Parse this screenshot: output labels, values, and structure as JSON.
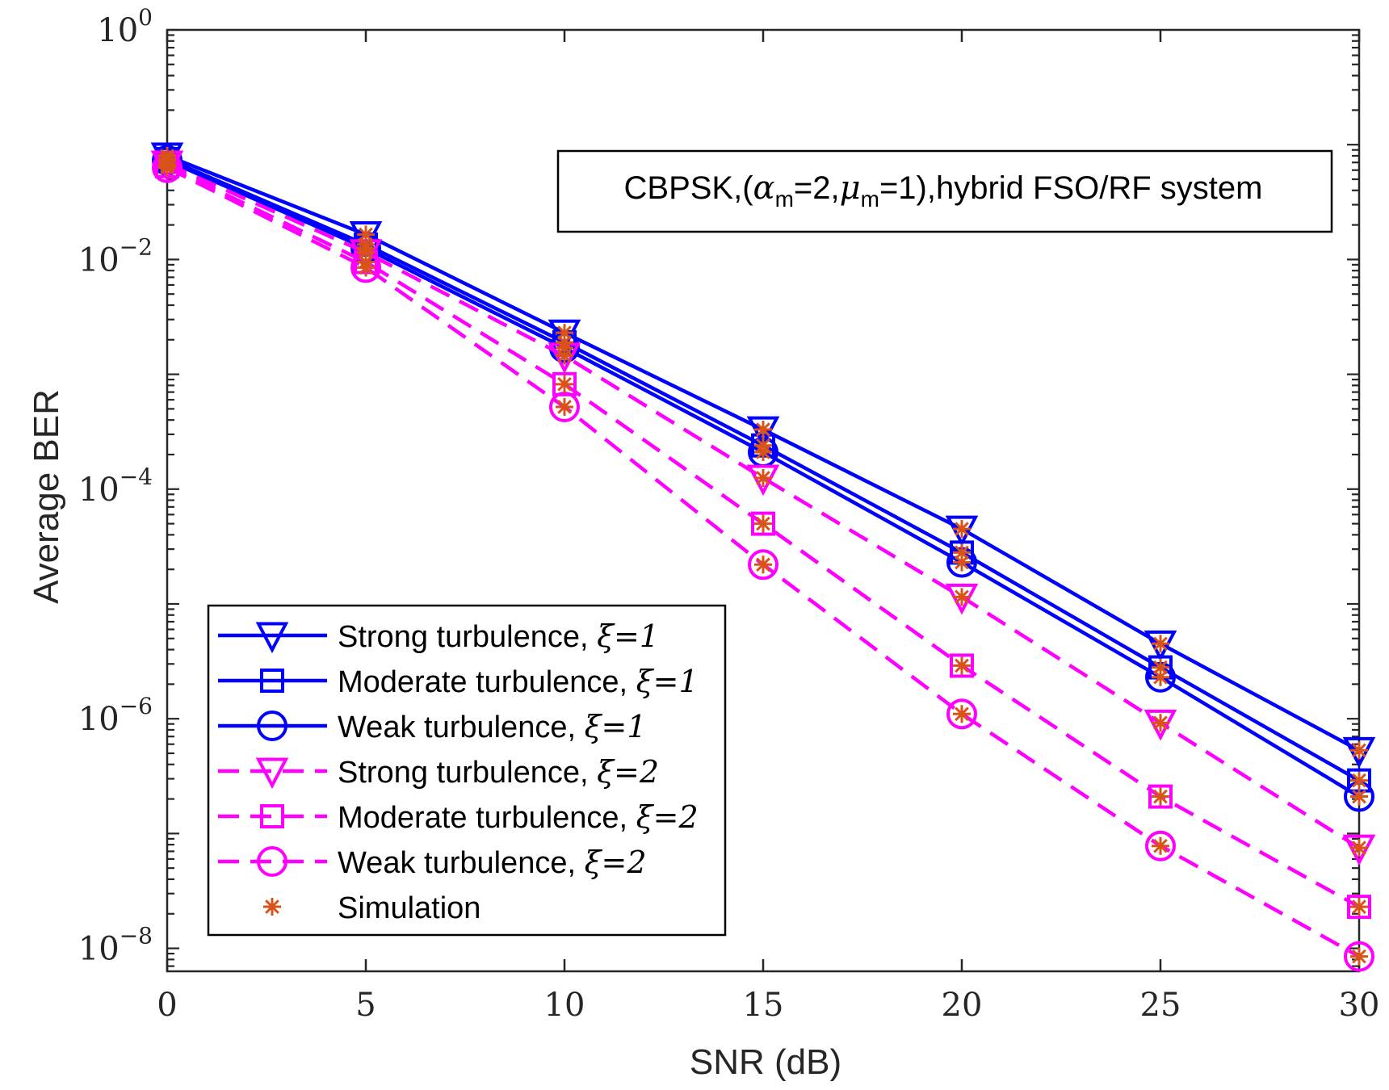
{
  "chart_data": {
    "type": "line",
    "yscale": "log",
    "xlabel": "SNR (dB)",
    "ylabel": "Average BER",
    "xlim": [
      0,
      30
    ],
    "ylim_exp": [
      -8.2,
      0
    ],
    "x_ticks": [
      0,
      5,
      10,
      15,
      20,
      25,
      30
    ],
    "x_tick_labels": [
      "0",
      "5",
      "10",
      "15",
      "20",
      "25",
      "30"
    ],
    "y_ticks_exp": [
      0,
      -2,
      -4,
      -6,
      -8
    ],
    "y_tick_labels": [
      {
        "base": "10",
        "exp": "0"
      },
      {
        "base": "10",
        "exp": "−2"
      },
      {
        "base": "10",
        "exp": "−4"
      },
      {
        "base": "10",
        "exp": "−6"
      },
      {
        "base": "10",
        "exp": "−8"
      }
    ],
    "x": [
      0,
      5,
      10,
      15,
      20,
      25,
      30
    ],
    "series": [
      {
        "name": "Strong turbulence, ",
        "xi": "ξ=1",
        "color": "#0000ff",
        "dash": "solid",
        "marker": "triangle-down",
        "values": [
          0.08,
          0.0165,
          0.0023,
          0.00033,
          4.5e-05,
          4.5e-06,
          5.3e-07
        ]
      },
      {
        "name": "Moderate turbulence, ",
        "xi": "ξ=1",
        "color": "#0000ff",
        "dash": "solid",
        "marker": "square",
        "values": [
          0.075,
          0.0135,
          0.0019,
          0.00024,
          2.8e-05,
          2.8e-06,
          2.9e-07
        ]
      },
      {
        "name": "Weak turbulence, ",
        "xi": "ξ=1",
        "color": "#0000ff",
        "dash": "solid",
        "marker": "circle",
        "values": [
          0.073,
          0.0125,
          0.0017,
          0.00021,
          2.3e-05,
          2.3e-06,
          2.1e-07
        ]
      },
      {
        "name": "Strong turbulence, ",
        "xi": "ξ=2",
        "color": "#ff00ff",
        "dash": "dashed",
        "marker": "triangle-down",
        "values": [
          0.068,
          0.0115,
          0.00145,
          0.000125,
          1.15e-05,
          9.2e-07,
          7.5e-08
        ]
      },
      {
        "name": "Moderate turbulence, ",
        "xi": "ξ=2",
        "color": "#ff00ff",
        "dash": "dashed",
        "marker": "square",
        "values": [
          0.065,
          0.0095,
          0.00082,
          5e-05,
          2.9e-06,
          2.1e-07,
          2.3e-08
        ]
      },
      {
        "name": "Weak turbulence, ",
        "xi": "ξ=2",
        "color": "#ff00ff",
        "dash": "dashed",
        "marker": "circle",
        "values": [
          0.063,
          0.0085,
          0.00052,
          2.2e-05,
          1.1e-06,
          7.8e-08,
          8.5e-09
        ]
      }
    ],
    "simulation": {
      "name": "Simulation",
      "color": "#d95319"
    },
    "annotation": {
      "prefix": "CBPSK,(",
      "alpha": "α",
      "alpha_sub": "m",
      "alpha_val": "=2,",
      "mu": "μ",
      "mu_sub": "m",
      "suffix": "=1),hybrid FSO/RF system"
    },
    "legend_position": "bottom-left",
    "grid": false
  }
}
